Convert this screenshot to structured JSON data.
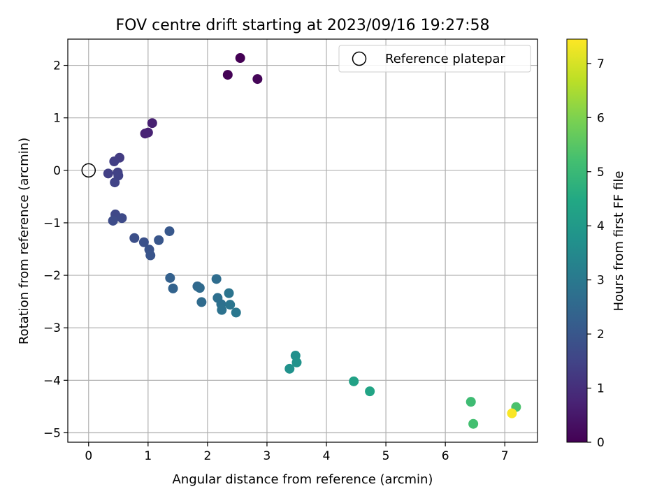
{
  "chart_data": {
    "type": "scatter",
    "title": "FOV centre drift starting at 2023/09/16 19:27:58",
    "xlabel": "Angular distance from reference (arcmin)",
    "ylabel": "Rotation from reference (arcmin)",
    "xlim": [
      -0.35,
      7.55
    ],
    "ylim": [
      -5.18,
      2.5
    ],
    "xticks": [
      0,
      1,
      2,
      3,
      4,
      5,
      6,
      7
    ],
    "yticks": [
      -5,
      -4,
      -3,
      -2,
      -1,
      0,
      1,
      2
    ],
    "grid": true,
    "legend": {
      "position": "top-right",
      "entries": [
        "Reference platepar"
      ]
    },
    "reference_point": {
      "x": 0,
      "y": 0,
      "label": "Reference platepar"
    },
    "colorbar": {
      "label": "Hours from first FF file",
      "colormap": "viridis",
      "range": [
        0,
        7.45
      ],
      "ticks": [
        0,
        1,
        2,
        3,
        4,
        5,
        6,
        7
      ]
    },
    "points": [
      {
        "x": 2.55,
        "y": 2.14,
        "h": 0.0
      },
      {
        "x": 2.34,
        "y": 1.82,
        "h": 0.05
      },
      {
        "x": 2.84,
        "y": 1.74,
        "h": 0.1
      },
      {
        "x": 1.07,
        "y": 0.9,
        "h": 0.65
      },
      {
        "x": 0.95,
        "y": 0.7,
        "h": 0.7
      },
      {
        "x": 1.0,
        "y": 0.72,
        "h": 0.72
      },
      {
        "x": 0.52,
        "y": 0.24,
        "h": 1.3
      },
      {
        "x": 0.43,
        "y": 0.17,
        "h": 1.35
      },
      {
        "x": 0.33,
        "y": -0.06,
        "h": 1.4
      },
      {
        "x": 0.49,
        "y": -0.04,
        "h": 1.42
      },
      {
        "x": 0.5,
        "y": -0.1,
        "h": 1.45
      },
      {
        "x": 0.44,
        "y": -0.23,
        "h": 1.5
      },
      {
        "x": 0.45,
        "y": -0.84,
        "h": 1.6
      },
      {
        "x": 0.56,
        "y": -0.91,
        "h": 1.65
      },
      {
        "x": 0.41,
        "y": -0.96,
        "h": 1.7
      },
      {
        "x": 0.77,
        "y": -1.29,
        "h": 1.8
      },
      {
        "x": 0.93,
        "y": -1.37,
        "h": 1.85
      },
      {
        "x": 1.02,
        "y": -1.51,
        "h": 1.9
      },
      {
        "x": 1.04,
        "y": -1.62,
        "h": 1.95
      },
      {
        "x": 1.18,
        "y": -1.33,
        "h": 2.0
      },
      {
        "x": 1.36,
        "y": -1.16,
        "h": 2.05
      },
      {
        "x": 1.37,
        "y": -2.05,
        "h": 2.3
      },
      {
        "x": 1.42,
        "y": -2.25,
        "h": 2.35
      },
      {
        "x": 1.83,
        "y": -2.21,
        "h": 2.5
      },
      {
        "x": 1.87,
        "y": -2.24,
        "h": 2.55
      },
      {
        "x": 1.9,
        "y": -2.51,
        "h": 2.6
      },
      {
        "x": 2.15,
        "y": -2.07,
        "h": 2.65
      },
      {
        "x": 2.17,
        "y": -2.43,
        "h": 2.7
      },
      {
        "x": 2.23,
        "y": -2.55,
        "h": 2.75
      },
      {
        "x": 2.24,
        "y": -2.66,
        "h": 2.8
      },
      {
        "x": 2.36,
        "y": -2.34,
        "h": 2.85
      },
      {
        "x": 2.38,
        "y": -2.56,
        "h": 2.9
      },
      {
        "x": 2.48,
        "y": -2.71,
        "h": 2.95
      },
      {
        "x": 3.48,
        "y": -3.53,
        "h": 3.7
      },
      {
        "x": 3.38,
        "y": -3.78,
        "h": 3.75
      },
      {
        "x": 3.5,
        "y": -3.66,
        "h": 3.8
      },
      {
        "x": 4.46,
        "y": -4.02,
        "h": 4.25
      },
      {
        "x": 4.73,
        "y": -4.21,
        "h": 4.35
      },
      {
        "x": 6.43,
        "y": -4.41,
        "h": 5.1
      },
      {
        "x": 6.47,
        "y": -4.83,
        "h": 5.2
      },
      {
        "x": 7.19,
        "y": -4.51,
        "h": 5.3
      },
      {
        "x": 7.12,
        "y": -4.63,
        "h": 7.4
      }
    ]
  }
}
